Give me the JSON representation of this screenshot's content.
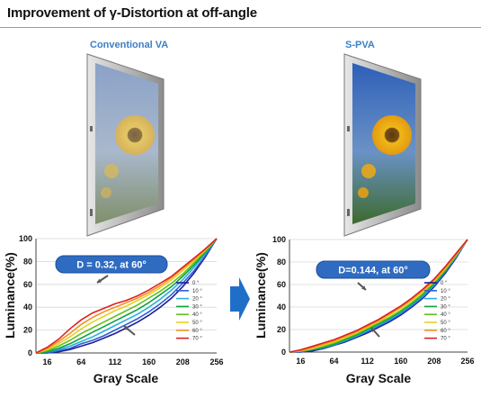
{
  "page": {
    "title": "Improvement of γ-Distortion at off-angle",
    "left_label": "Conventional VA",
    "right_label": "S-PVA",
    "colors": {
      "accent": "#3b7fc4",
      "arrow": "#1f6fc9",
      "callout": "#2f6bc1"
    },
    "icons": [
      "monitor-photo-sunflower",
      "right-arrow-icon"
    ]
  },
  "chart_data": [
    {
      "type": "line",
      "name": "conventional-va",
      "xlabel": "Gray Scale",
      "ylabel": "Luminance(%)",
      "xticks": [
        16,
        64,
        112,
        160,
        208,
        256
      ],
      "yticks": [
        0,
        20,
        40,
        60,
        80,
        100
      ],
      "xlim": [
        0,
        256
      ],
      "ylim": [
        0,
        100
      ],
      "annotation": "D = 0.32, at 60°",
      "legend": [
        "0 °",
        "10 °",
        "20 °",
        "30 °",
        "40 °",
        "50 °",
        "60 °",
        "70 °"
      ],
      "x": [
        0,
        16,
        32,
        48,
        64,
        80,
        96,
        112,
        128,
        144,
        160,
        176,
        192,
        208,
        224,
        240,
        256
      ],
      "series": [
        {
          "name": "0 °",
          "color": "#1c1c9c",
          "values": [
            0,
            0,
            1,
            3,
            6,
            9,
            13,
            17,
            22,
            27,
            33,
            40,
            48,
            58,
            70,
            84,
            100
          ]
        },
        {
          "name": "10 °",
          "color": "#3060d0",
          "values": [
            0,
            0,
            2,
            4,
            8,
            11,
            15,
            20,
            25,
            30,
            36,
            43,
            51,
            61,
            72,
            85,
            100
          ]
        },
        {
          "name": "20 °",
          "color": "#28b0e0",
          "values": [
            0,
            1,
            3,
            6,
            10,
            14,
            19,
            24,
            29,
            34,
            40,
            47,
            55,
            64,
            75,
            87,
            100
          ]
        },
        {
          "name": "30 °",
          "color": "#10a040",
          "values": [
            0,
            1,
            4,
            8,
            13,
            18,
            23,
            28,
            33,
            38,
            44,
            51,
            58,
            67,
            77,
            88,
            100
          ]
        },
        {
          "name": "40 °",
          "color": "#60c020",
          "values": [
            0,
            2,
            6,
            11,
            17,
            22,
            27,
            32,
            37,
            42,
            48,
            54,
            61,
            69,
            79,
            89,
            100
          ]
        },
        {
          "name": "50 °",
          "color": "#e8d020",
          "values": [
            0,
            3,
            8,
            14,
            21,
            27,
            32,
            37,
            41,
            46,
            51,
            57,
            64,
            72,
            81,
            90,
            100
          ]
        },
        {
          "name": "60 °",
          "color": "#f09020",
          "values": [
            0,
            4,
            10,
            17,
            25,
            31,
            36,
            40,
            44,
            48,
            53,
            59,
            66,
            74,
            82,
            91,
            100
          ]
        },
        {
          "name": "70 °",
          "color": "#e02020",
          "values": [
            0,
            5,
            12,
            21,
            29,
            35,
            39,
            43,
            46,
            50,
            55,
            61,
            67,
            75,
            83,
            91,
            100
          ]
        }
      ]
    },
    {
      "type": "line",
      "name": "s-pva",
      "xlabel": "Gray Scale",
      "ylabel": "Luminance(%)",
      "xticks": [
        16,
        64,
        112,
        160,
        208,
        256
      ],
      "yticks": [
        0,
        20,
        40,
        60,
        80,
        100
      ],
      "xlim": [
        0,
        256
      ],
      "ylim": [
        0,
        100
      ],
      "annotation": "D=0.144, at 60°",
      "legend": [
        "0 °",
        "10 °",
        "20 °",
        "30 °",
        "40 °",
        "50 °",
        "60 °",
        "70 °"
      ],
      "x": [
        0,
        16,
        32,
        48,
        64,
        80,
        96,
        112,
        128,
        144,
        160,
        176,
        192,
        208,
        224,
        240,
        256
      ],
      "series": [
        {
          "name": "0 °",
          "color": "#1c1c9c",
          "values": [
            0,
            0,
            1,
            3,
            6,
            9,
            13,
            17,
            22,
            27,
            33,
            40,
            48,
            58,
            70,
            84,
            100
          ]
        },
        {
          "name": "10 °",
          "color": "#3060d0",
          "values": [
            0,
            0,
            2,
            3,
            6,
            10,
            14,
            18,
            23,
            28,
            34,
            41,
            49,
            59,
            71,
            85,
            100
          ]
        },
        {
          "name": "20 °",
          "color": "#28b0e0",
          "values": [
            0,
            1,
            2,
            4,
            7,
            10,
            14,
            19,
            24,
            29,
            35,
            42,
            50,
            60,
            72,
            85,
            100
          ]
        },
        {
          "name": "30 °",
          "color": "#10a040",
          "values": [
            0,
            1,
            2,
            4,
            7,
            11,
            15,
            20,
            25,
            30,
            36,
            43,
            51,
            61,
            72,
            86,
            100
          ]
        },
        {
          "name": "40 °",
          "color": "#60c020",
          "values": [
            0,
            1,
            3,
            5,
            8,
            12,
            16,
            21,
            26,
            31,
            37,
            44,
            52,
            62,
            73,
            86,
            100
          ]
        },
        {
          "name": "50 °",
          "color": "#e8d020",
          "values": [
            0,
            1,
            3,
            6,
            9,
            13,
            17,
            22,
            27,
            33,
            39,
            46,
            54,
            63,
            74,
            87,
            100
          ]
        },
        {
          "name": "60 °",
          "color": "#f09020",
          "values": [
            0,
            1,
            4,
            7,
            10,
            14,
            18,
            23,
            28,
            34,
            40,
            47,
            55,
            64,
            75,
            87,
            100
          ]
        },
        {
          "name": "70 °",
          "color": "#e02020",
          "values": [
            0,
            2,
            5,
            8,
            11,
            15,
            19,
            24,
            29,
            35,
            41,
            48,
            56,
            65,
            76,
            88,
            100
          ]
        }
      ]
    }
  ]
}
